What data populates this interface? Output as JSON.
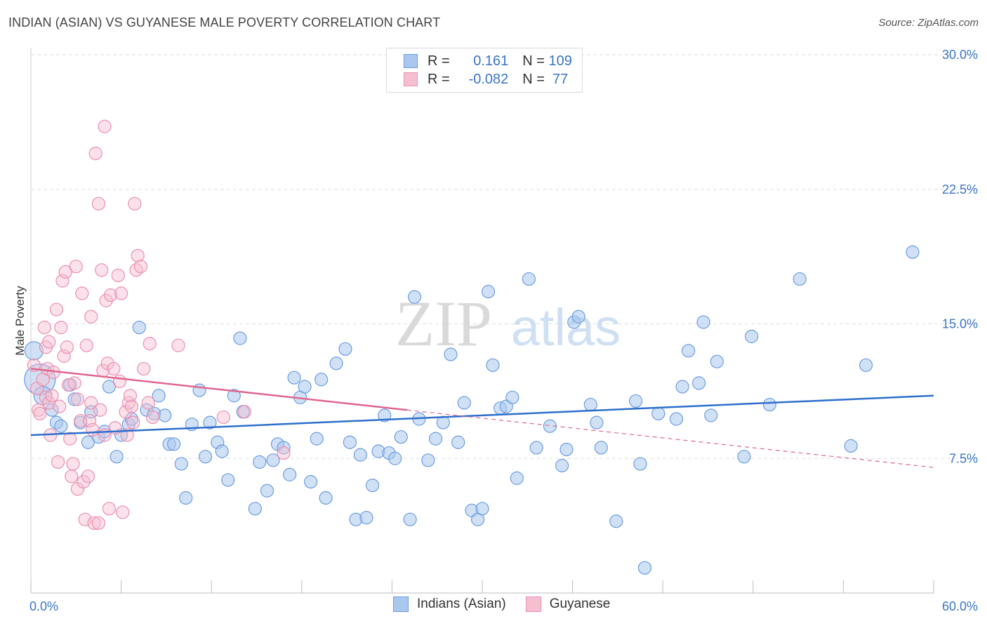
{
  "header": {
    "title": "INDIAN (ASIAN) VS GUYANESE MALE POVERTY CORRELATION CHART",
    "source": "Source: ZipAtlas.com"
  },
  "colors": {
    "blue_fill": "#aac8ef",
    "blue_stroke": "#6c9de0",
    "blue_line": "#2e6fcc",
    "pink_fill": "#f6bfd0",
    "pink_stroke": "#eb8fae",
    "pink_line": "#e0668e",
    "accent_text": "#3a74c8"
  },
  "legend": {
    "rows": [
      {
        "r_label": "R = ",
        "r_value": " 0.161",
        "n_label": "N = ",
        "n_value": "109"
      },
      {
        "r_label": "R = ",
        "r_value": "-0.082",
        "n_label": "N = ",
        "n_value": " 77"
      }
    ]
  },
  "bottom_legend": [
    "Indians (Asian)",
    "Guyanese"
  ],
  "watermark": {
    "zip": "ZIP",
    "atlas": "atlas"
  },
  "chart_data": {
    "type": "scatter",
    "title": "INDIAN (ASIAN) VS GUYANESE MALE POVERTY CORRELATION CHART",
    "xlabel": "",
    "ylabel": "Male Poverty",
    "xlim": [
      0,
      60
    ],
    "ylim": [
      0,
      30
    ],
    "x_tick_labels": [
      "0.0%",
      "60.0%"
    ],
    "y_ticks": [
      7.5,
      15.0,
      22.5,
      30.0
    ],
    "y_tick_labels": [
      "7.5%",
      "15.0%",
      "22.5%",
      "30.0%"
    ],
    "grid": true,
    "legend_position": "top-center",
    "series": [
      {
        "name": "Indians (Asian)",
        "r": 0.161,
        "n": 109,
        "trend": {
          "x": [
            0,
            60
          ],
          "y": [
            8.8,
            11.0
          ]
        },
        "points": [
          [
            0.2,
            13.5
          ],
          [
            0.6,
            11.9
          ],
          [
            0.8,
            11.0
          ],
          [
            1.4,
            10.2
          ],
          [
            1.7,
            9.5
          ],
          [
            2.0,
            9.3
          ],
          [
            2.6,
            11.6
          ],
          [
            2.9,
            10.8
          ],
          [
            3.3,
            9.5
          ],
          [
            3.8,
            8.4
          ],
          [
            4.0,
            10.1
          ],
          [
            4.5,
            8.7
          ],
          [
            4.9,
            9.0
          ],
          [
            5.2,
            11.5
          ],
          [
            5.7,
            7.6
          ],
          [
            6.0,
            8.8
          ],
          [
            6.5,
            9.4
          ],
          [
            6.7,
            9.7
          ],
          [
            7.2,
            14.8
          ],
          [
            7.7,
            10.2
          ],
          [
            8.2,
            10.0
          ],
          [
            8.5,
            11.0
          ],
          [
            8.9,
            9.9
          ],
          [
            9.2,
            8.3
          ],
          [
            9.5,
            8.3
          ],
          [
            10.0,
            7.2
          ],
          [
            10.3,
            5.3
          ],
          [
            10.7,
            9.4
          ],
          [
            11.2,
            11.3
          ],
          [
            11.6,
            7.6
          ],
          [
            11.9,
            9.5
          ],
          [
            12.4,
            8.4
          ],
          [
            12.7,
            7.9
          ],
          [
            13.1,
            6.3
          ],
          [
            13.5,
            11.0
          ],
          [
            13.9,
            14.2
          ],
          [
            14.1,
            10.1
          ],
          [
            14.9,
            4.7
          ],
          [
            15.2,
            7.3
          ],
          [
            15.7,
            5.7
          ],
          [
            16.1,
            7.4
          ],
          [
            16.4,
            8.3
          ],
          [
            16.8,
            8.1
          ],
          [
            17.2,
            6.6
          ],
          [
            17.5,
            12.0
          ],
          [
            17.9,
            10.9
          ],
          [
            18.2,
            11.5
          ],
          [
            18.6,
            6.2
          ],
          [
            19.0,
            8.6
          ],
          [
            19.3,
            11.9
          ],
          [
            19.6,
            5.3
          ],
          [
            20.3,
            12.8
          ],
          [
            20.9,
            13.6
          ],
          [
            21.2,
            8.4
          ],
          [
            21.6,
            4.1
          ],
          [
            21.9,
            7.7
          ],
          [
            22.3,
            4.2
          ],
          [
            22.7,
            6.0
          ],
          [
            23.1,
            7.9
          ],
          [
            23.5,
            9.9
          ],
          [
            23.8,
            7.8
          ],
          [
            24.2,
            7.5
          ],
          [
            24.6,
            8.7
          ],
          [
            25.2,
            4.1
          ],
          [
            25.5,
            16.5
          ],
          [
            25.8,
            9.7
          ],
          [
            26.4,
            7.4
          ],
          [
            26.9,
            8.6
          ],
          [
            27.4,
            9.5
          ],
          [
            27.9,
            13.3
          ],
          [
            28.4,
            8.4
          ],
          [
            28.8,
            10.6
          ],
          [
            29.3,
            4.6
          ],
          [
            29.7,
            4.1
          ],
          [
            30.0,
            4.7
          ],
          [
            30.4,
            16.8
          ],
          [
            30.7,
            12.7
          ],
          [
            31.2,
            10.3
          ],
          [
            31.6,
            10.4
          ],
          [
            32.0,
            10.9
          ],
          [
            32.3,
            6.4
          ],
          [
            33.1,
            17.5
          ],
          [
            33.6,
            8.1
          ],
          [
            34.5,
            9.3
          ],
          [
            35.3,
            7.1
          ],
          [
            35.6,
            8.0
          ],
          [
            36.1,
            15.1
          ],
          [
            36.4,
            15.4
          ],
          [
            37.2,
            10.5
          ],
          [
            37.6,
            9.5
          ],
          [
            37.9,
            8.1
          ],
          [
            38.9,
            4.0
          ],
          [
            40.2,
            10.7
          ],
          [
            40.5,
            7.2
          ],
          [
            40.8,
            1.4
          ],
          [
            41.7,
            10.0
          ],
          [
            42.9,
            9.7
          ],
          [
            43.3,
            11.5
          ],
          [
            43.7,
            13.5
          ],
          [
            44.4,
            11.7
          ],
          [
            44.7,
            15.1
          ],
          [
            45.2,
            9.9
          ],
          [
            45.6,
            12.9
          ],
          [
            47.4,
            7.6
          ],
          [
            47.9,
            14.3
          ],
          [
            49.1,
            10.5
          ],
          [
            51.1,
            17.5
          ],
          [
            54.5,
            8.2
          ],
          [
            55.5,
            12.7
          ],
          [
            58.6,
            19.0
          ]
        ]
      },
      {
        "name": "Guyanese",
        "r": -0.082,
        "n": 77,
        "trend": {
          "x": [
            0,
            25
          ],
          "y": [
            12.5,
            10.2
          ]
        },
        "trend_extension": {
          "x": [
            25,
            60
          ],
          "y": [
            10.2,
            7.0
          ]
        },
        "points": [
          [
            0.2,
            12.7
          ],
          [
            0.4,
            11.4
          ],
          [
            0.5,
            10.2
          ],
          [
            0.6,
            10.0
          ],
          [
            0.8,
            11.9
          ],
          [
            0.9,
            14.8
          ],
          [
            1.0,
            13.7
          ],
          [
            1.0,
            10.9
          ],
          [
            1.1,
            12.5
          ],
          [
            1.2,
            14.0
          ],
          [
            1.2,
            10.6
          ],
          [
            1.3,
            8.8
          ],
          [
            1.4,
            11.0
          ],
          [
            1.5,
            12.3
          ],
          [
            1.7,
            15.8
          ],
          [
            1.8,
            7.3
          ],
          [
            1.9,
            10.4
          ],
          [
            2.0,
            14.8
          ],
          [
            2.1,
            17.4
          ],
          [
            2.2,
            13.2
          ],
          [
            2.3,
            17.9
          ],
          [
            2.4,
            13.7
          ],
          [
            2.5,
            11.6
          ],
          [
            2.6,
            8.6
          ],
          [
            2.7,
            6.5
          ],
          [
            2.8,
            7.2
          ],
          [
            2.9,
            11.7
          ],
          [
            3.0,
            18.2
          ],
          [
            3.1,
            10.8
          ],
          [
            3.1,
            5.8
          ],
          [
            3.3,
            9.6
          ],
          [
            3.4,
            16.7
          ],
          [
            3.5,
            6.2
          ],
          [
            3.6,
            4.1
          ],
          [
            3.7,
            13.8
          ],
          [
            3.8,
            6.5
          ],
          [
            3.9,
            9.6
          ],
          [
            4.0,
            15.4
          ],
          [
            4.0,
            10.6
          ],
          [
            4.1,
            9.1
          ],
          [
            4.2,
            3.9
          ],
          [
            4.3,
            24.5
          ],
          [
            4.5,
            3.9
          ],
          [
            4.5,
            21.7
          ],
          [
            4.6,
            10.2
          ],
          [
            4.7,
            18.0
          ],
          [
            4.8,
            12.4
          ],
          [
            4.9,
            8.8
          ],
          [
            4.9,
            26.0
          ],
          [
            5.0,
            16.3
          ],
          [
            5.1,
            12.8
          ],
          [
            5.2,
            4.7
          ],
          [
            5.3,
            16.6
          ],
          [
            5.5,
            12.5
          ],
          [
            5.6,
            9.2
          ],
          [
            5.8,
            17.7
          ],
          [
            5.9,
            11.8
          ],
          [
            6.0,
            16.7
          ],
          [
            6.1,
            4.5
          ],
          [
            6.3,
            10.1
          ],
          [
            6.4,
            8.8
          ],
          [
            6.5,
            10.6
          ],
          [
            6.6,
            11.0
          ],
          [
            6.7,
            10.4
          ],
          [
            6.8,
            9.5
          ],
          [
            6.9,
            21.7
          ],
          [
            7.0,
            18.0
          ],
          [
            7.1,
            18.8
          ],
          [
            7.3,
            18.2
          ],
          [
            7.5,
            12.5
          ],
          [
            7.8,
            10.6
          ],
          [
            7.9,
            13.9
          ],
          [
            8.1,
            9.8
          ],
          [
            9.8,
            13.8
          ],
          [
            12.8,
            9.8
          ],
          [
            14.2,
            10.1
          ],
          [
            16.8,
            7.8
          ]
        ]
      }
    ]
  }
}
